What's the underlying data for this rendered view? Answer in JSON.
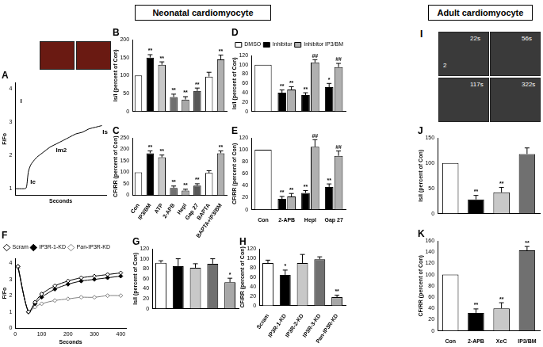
{
  "headers": [
    "Neonatal cardiomyocyte",
    "Adult cardiomyocyte"
  ],
  "images": {
    "title": "I",
    "labels": [
      "22s",
      "56s",
      "117s",
      "322s"
    ],
    "cell_label": "2"
  },
  "chart_data": [
    {
      "type": "line",
      "title": "A",
      "x_label": "Seconds",
      "y_label": "F/Fo",
      "x": [
        0,
        20,
        40,
        50,
        55,
        60,
        70,
        80,
        100,
        130,
        160,
        190,
        220,
        250,
        280,
        310,
        340,
        370,
        400
      ],
      "values": [
        1,
        1,
        1,
        1.02,
        1.2,
        1.5,
        1.7,
        1.8,
        1.95,
        2.1,
        2.25,
        2.35,
        2.45,
        2.55,
        2.65,
        2.7,
        2.8,
        2.85,
        2.9
      ],
      "color": "#000000",
      "xlim": [
        0,
        420
      ],
      "ylim": [
        0.8,
        4.2
      ],
      "yticks": [
        1,
        2,
        3,
        4
      ],
      "tick_labels": "y",
      "annotations": [
        {
          "text": "I",
          "x": 15,
          "y": 3.5
        },
        {
          "text": "Ie",
          "x": 62,
          "y": 1.05
        },
        {
          "text": "Im2",
          "x": 180,
          "y": 2.0
        },
        {
          "text": "Is",
          "x": 395,
          "y": 2.55
        }
      ]
    },
    {
      "type": "bar",
      "title": "B",
      "y_label": "Is/I (percent of Con)",
      "categories": [
        null,
        null,
        null,
        null,
        null,
        null,
        null,
        null
      ],
      "values": [
        100,
        150,
        130,
        40,
        33,
        57,
        97,
        145
      ],
      "errors": [
        0,
        8,
        8,
        8,
        8,
        8,
        12,
        12
      ],
      "stars": [
        null,
        "**",
        "**",
        "**",
        "**",
        "**",
        null,
        "**"
      ],
      "colors": [
        "#ffffff",
        "#000000",
        "#c8c8c8",
        "#707070",
        "#a8a8a8",
        "#585858",
        "#ffffff",
        "#b0b0b0"
      ],
      "ylim": [
        0,
        200
      ],
      "yticks": [
        0,
        50,
        100,
        150,
        200
      ]
    },
    {
      "type": "bar",
      "title": "C",
      "y_label": "CF/RR (percent of Con)",
      "categories": [
        "Con",
        "IP3/BM",
        "ATP",
        "2-APB",
        "Hepl",
        "Gap 27",
        "BAPTA",
        "BAPTA+IP3/BM"
      ],
      "values": [
        100,
        183,
        165,
        32,
        20,
        42,
        97,
        183
      ],
      "errors": [
        0,
        10,
        10,
        8,
        6,
        8,
        10,
        10
      ],
      "stars": [
        null,
        "**",
        "**",
        "**",
        "**",
        "**",
        null,
        "**"
      ],
      "colors": [
        "#ffffff",
        "#000000",
        "#c8c8c8",
        "#707070",
        "#a8a8a8",
        "#585858",
        "#ffffff",
        "#b0b0b0"
      ],
      "ylim": [
        0,
        250
      ],
      "yticks": [
        0,
        50,
        100,
        150,
        200,
        250
      ]
    },
    {
      "type": "bar",
      "title": "D",
      "y_label": "Is/I (percent of Con)",
      "legend": "top-right",
      "categories": [
        null,
        null,
        null,
        null
      ],
      "series": [
        {
          "name": "DMSO",
          "color": "#ffffff",
          "values": [
            100,
            null,
            null,
            null
          ],
          "errors": [
            0,
            null,
            null,
            null
          ],
          "stars": [
            null,
            null,
            null,
            null
          ]
        },
        {
          "name": "Inhibitor",
          "color": "#000000",
          "values": [
            null,
            40,
            35,
            52
          ],
          "errors": [
            null,
            6,
            5,
            8
          ],
          "stars": [
            null,
            "**",
            "**",
            "*"
          ]
        },
        {
          "name": "Inhibitor IP3/BM",
          "color": "#b0b0b0",
          "values": [
            null,
            47,
            105,
            95
          ],
          "errors": [
            null,
            6,
            6,
            8
          ],
          "stars": [
            null,
            "**",
            "##",
            "##"
          ]
        }
      ],
      "ylim": [
        0,
        120
      ],
      "yticks": [
        0,
        20,
        40,
        60,
        80,
        100,
        120
      ]
    },
    {
      "type": "bar",
      "title": "E",
      "y_label": "CF/RR (percent of Con)",
      "categories": [
        "Con",
        "2-APB",
        "Hepl",
        "Gap 27"
      ],
      "series": [
        {
          "name": "DMSO",
          "color": "#ffffff",
          "values": [
            100,
            null,
            null,
            null
          ],
          "errors": [
            0,
            null,
            null,
            null
          ],
          "stars": [
            null,
            null,
            null,
            null
          ]
        },
        {
          "name": "Inhibitor",
          "color": "#000000",
          "values": [
            null,
            18,
            28,
            38
          ],
          "errors": [
            null,
            4,
            4,
            5
          ],
          "stars": [
            null,
            "**",
            "**",
            "**"
          ]
        },
        {
          "name": "Inhibitor IP3/BM",
          "color": "#b0b0b0",
          "values": [
            null,
            22,
            105,
            90
          ],
          "errors": [
            null,
            5,
            12,
            8
          ],
          "stars": [
            null,
            "**",
            "##",
            "##"
          ]
        }
      ],
      "ylim": [
        0,
        120
      ],
      "yticks": [
        0,
        20,
        40,
        60,
        80,
        100,
        120
      ]
    },
    {
      "type": "line",
      "title": "F",
      "x_label": "Seconds",
      "y_label": "F/Fo",
      "legend": "top-left",
      "x": [
        10,
        50,
        75,
        100,
        150,
        200,
        250,
        300,
        350,
        400
      ],
      "series": [
        {
          "name": "Scram",
          "color": "#000000",
          "marker": "diamond-open",
          "values": [
            3.8,
            1.0,
            1.6,
            2.1,
            2.6,
            2.9,
            3.1,
            3.2,
            3.3,
            3.4
          ]
        },
        {
          "name": "IP3R-1-KD",
          "color": "#000000",
          "marker": "diamond",
          "values": [
            3.8,
            1.0,
            1.5,
            1.9,
            2.4,
            2.7,
            2.9,
            3.0,
            3.1,
            3.2
          ]
        },
        {
          "name": "Pan-IP3R-KD",
          "color": "#808080",
          "marker": "diamond-open",
          "values": [
            3.7,
            1.0,
            1.3,
            1.5,
            1.7,
            1.8,
            1.9,
            1.9,
            2.0,
            2.0
          ]
        }
      ],
      "xlim": [
        0,
        420
      ],
      "xticks": [
        0,
        100,
        200,
        300,
        400
      ],
      "ylim": [
        0,
        4.3
      ],
      "yticks": [
        0,
        1,
        2,
        3,
        4
      ]
    },
    {
      "type": "bar",
      "title": "G",
      "y_label": "Is/I (percent of Con)",
      "categories": [
        null,
        null,
        null,
        null,
        null
      ],
      "values": [
        92,
        85,
        82,
        90,
        53
      ],
      "errors": [
        4,
        15,
        8,
        10,
        8
      ],
      "stars": [
        null,
        null,
        null,
        null,
        "*"
      ],
      "colors": [
        "#ffffff",
        "#000000",
        "#c8c8c8",
        "#707070",
        "#a8a8a8"
      ],
      "ylim": [
        0,
        120
      ],
      "yticks": [
        0,
        20,
        40,
        60,
        80,
        100,
        120
      ]
    },
    {
      "type": "bar",
      "title": "H",
      "y_label": "CF/RR (percent of Con)",
      "categories": [
        "Scram",
        "IP3R-1-KD",
        "IP3R-2-KD",
        "IP3R-3-KD",
        "Pan-IP3R-KD"
      ],
      "values": [
        90,
        65,
        90,
        98,
        18
      ],
      "errors": [
        6,
        10,
        18,
        5,
        4
      ],
      "stars": [
        null,
        "*",
        null,
        null,
        "**"
      ],
      "colors": [
        "#ffffff",
        "#000000",
        "#c8c8c8",
        "#707070",
        "#a8a8a8"
      ],
      "ylim": [
        0,
        120
      ],
      "yticks": [
        0,
        20,
        40,
        60,
        80,
        100,
        120
      ]
    },
    {
      "type": "bar",
      "title": "J",
      "y_label": "Is/I (percent of Con)",
      "categories": [
        null,
        null,
        null,
        null
      ],
      "values": [
        100,
        28,
        42,
        118
      ],
      "errors": [
        0,
        8,
        10,
        12
      ],
      "stars": [
        null,
        "**",
        "**",
        null
      ],
      "colors": [
        "#ffffff",
        "#000000",
        "#c8c8c8",
        "#707070"
      ],
      "ylim": [
        0,
        150
      ],
      "yticks": [
        0,
        50,
        100,
        150
      ]
    },
    {
      "type": "bar",
      "title": "K",
      "y_label": "CF/RR (percent of Con)",
      "categories": [
        "Con",
        "2-APB",
        "XeC",
        "IP3/BM"
      ],
      "values": [
        100,
        32,
        40,
        143
      ],
      "errors": [
        0,
        7,
        10,
        7
      ],
      "stars": [
        null,
        "**",
        "**",
        "**"
      ],
      "colors": [
        "#ffffff",
        "#000000",
        "#c8c8c8",
        "#707070"
      ],
      "ylim": [
        0,
        160
      ],
      "yticks": [
        0,
        20,
        40,
        60,
        80,
        100,
        120,
        140,
        160
      ]
    }
  ]
}
